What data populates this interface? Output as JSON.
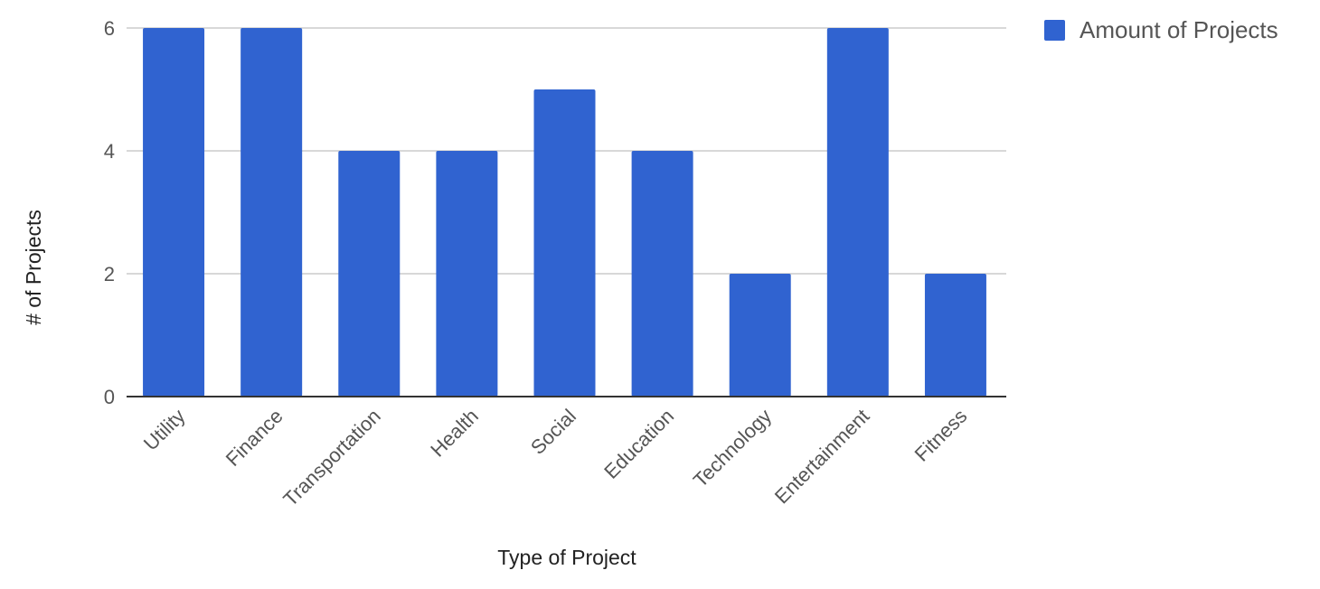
{
  "chart_data": {
    "type": "bar",
    "title": "",
    "xlabel": "Type of Project",
    "ylabel": "# of Projects",
    "categories": [
      "Utility",
      "Finance",
      "Transportation",
      "Health",
      "Social",
      "Education",
      "Technology",
      "Entertainment",
      "Fitness"
    ],
    "series": [
      {
        "name": "Amount of Projects",
        "values": [
          6,
          6,
          4,
          4,
          5,
          4,
          2,
          6,
          2
        ],
        "color": "#3063d0"
      }
    ],
    "ylim": [
      0,
      6
    ],
    "yticks": [
      "0",
      "2",
      "4",
      "6"
    ],
    "grid": true,
    "legend_position": "top-right"
  }
}
